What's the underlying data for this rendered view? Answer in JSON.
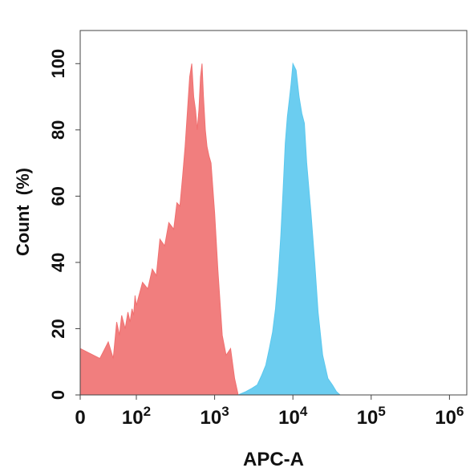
{
  "chart_data": {
    "type": "area",
    "title": "",
    "xlabel": "APC-A",
    "ylabel": "Count  (%)",
    "xscale": "biexponential",
    "xlim": [
      0,
      1000000
    ],
    "ylim": [
      0,
      110
    ],
    "grid": false,
    "legend": "none",
    "x_ticks": [
      {
        "value": 0,
        "base": "0",
        "exp": ""
      },
      {
        "value": 100,
        "base": "10",
        "exp": "2"
      },
      {
        "value": 1000,
        "base": "10",
        "exp": "3"
      },
      {
        "value": 10000,
        "base": "10",
        "exp": "4"
      },
      {
        "value": 100000,
        "base": "10",
        "exp": "5"
      },
      {
        "value": 1000000,
        "base": "10",
        "exp": "6"
      }
    ],
    "y_ticks": [
      0,
      20,
      40,
      60,
      80,
      100
    ],
    "series": [
      {
        "color": "#f07070",
        "x": [
          0,
          5,
          10,
          15,
          20,
          25,
          30,
          40,
          50,
          60,
          70,
          80,
          90,
          100,
          120,
          140,
          160,
          180,
          200,
          230,
          260,
          300,
          330,
          360,
          390,
          420,
          450,
          480,
          510,
          540,
          570,
          600,
          630,
          660,
          690,
          720,
          760,
          800,
          850,
          900,
          1000,
          1100,
          1250,
          1400,
          1600,
          1800,
          2000
        ],
        "y": [
          14,
          11,
          16,
          11,
          22,
          18,
          24,
          20,
          25,
          22,
          26,
          24,
          30,
          27,
          34,
          32,
          38,
          36,
          47,
          45,
          52,
          50,
          58,
          57,
          66,
          75,
          86,
          96,
          100,
          90,
          86,
          80,
          86,
          96,
          100,
          90,
          80,
          75,
          72,
          70,
          55,
          38,
          18,
          12,
          14,
          5,
          0
        ]
      },
      {
        "color": "#5bc8ee",
        "x": [
          2000,
          2500,
          3000,
          3500,
          4000,
          4500,
          5000,
          5500,
          6000,
          6500,
          7000,
          7500,
          8000,
          8500,
          9000,
          9500,
          10000,
          11000,
          12000,
          13000,
          14000,
          15000,
          17000,
          19000,
          21000,
          24000,
          28000,
          32000,
          36000,
          40000
        ],
        "y": [
          0,
          1,
          2,
          3,
          6,
          9,
          14,
          19,
          26,
          36,
          48,
          62,
          76,
          84,
          89,
          94,
          100,
          98,
          90,
          85,
          82,
          70,
          55,
          40,
          25,
          12,
          5,
          3,
          1,
          0
        ]
      }
    ]
  }
}
